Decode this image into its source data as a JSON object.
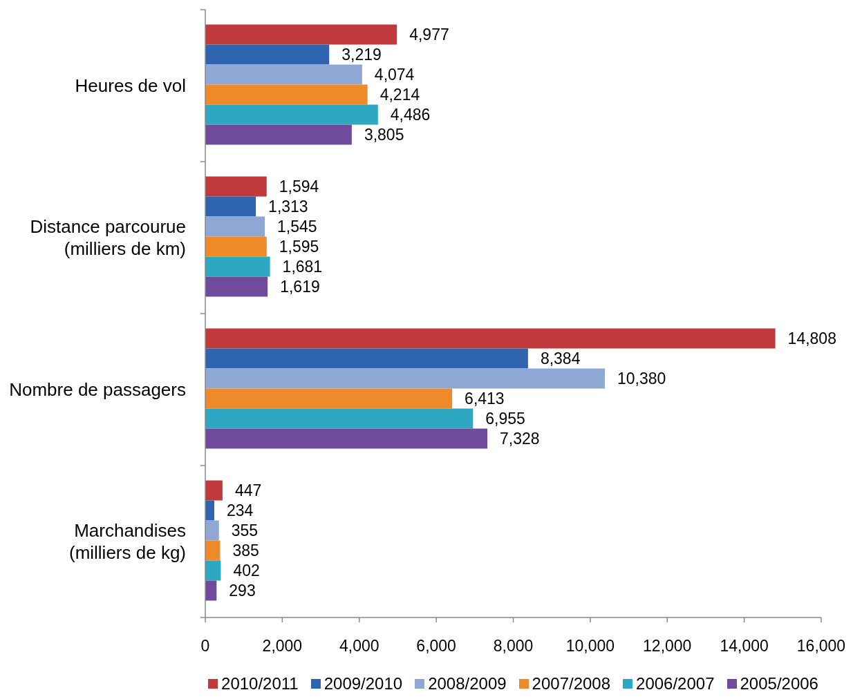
{
  "chart_data": {
    "type": "bar",
    "orientation": "horizontal",
    "categories": [
      "Heures de vol",
      "Distance parcourue (milliers de km)",
      "Nombre de passagers",
      "Marchandises (milliers de kg)"
    ],
    "series": [
      {
        "name": "2010/2011",
        "color": "#c0393b",
        "values": [
          4977,
          1594,
          14808,
          447
        ],
        "value_labels": [
          "4,977",
          "1,594",
          "14,808",
          "447"
        ]
      },
      {
        "name": "2009/2010",
        "color": "#2f65ae",
        "values": [
          3219,
          1313,
          8384,
          234
        ],
        "value_labels": [
          "3,219",
          "1,313",
          "8,384",
          "234"
        ]
      },
      {
        "name": "2008/2009",
        "color": "#8fa7d4",
        "values": [
          4074,
          1545,
          10380,
          355
        ],
        "value_labels": [
          "4,074",
          "1,545",
          "10,380",
          "355"
        ]
      },
      {
        "name": "2007/2008",
        "color": "#ee8a2a",
        "values": [
          4214,
          1595,
          6413,
          385
        ],
        "value_labels": [
          "4,214",
          "1,595",
          "6,413",
          "385"
        ]
      },
      {
        "name": "2006/2007",
        "color": "#2ea7c2",
        "values": [
          4486,
          1681,
          6955,
          402
        ],
        "value_labels": [
          "4,486",
          "1,681",
          "6,955",
          "402"
        ]
      },
      {
        "name": "2005/2006",
        "color": "#6f4b9c",
        "values": [
          3805,
          1619,
          7328,
          293
        ],
        "value_labels": [
          "3,805",
          "1,619",
          "7,328",
          "293"
        ]
      }
    ],
    "xlim": [
      0,
      16000
    ],
    "xticks": [
      0,
      {
        "value": 2000,
        "label": "2,000"
      },
      {
        "value": 4000,
        "label": "4,000"
      },
      {
        "value": 6000,
        "label": "6,000"
      },
      {
        "value": 8000,
        "label": "8,000"
      },
      {
        "value": 10000,
        "label": "10,000"
      },
      {
        "value": 12000,
        "label": "12,000"
      },
      {
        "value": 14000,
        "label": "14,000"
      },
      {
        "value": 16000,
        "label": "16,000"
      }
    ],
    "grid": false,
    "legend": "bottom"
  }
}
